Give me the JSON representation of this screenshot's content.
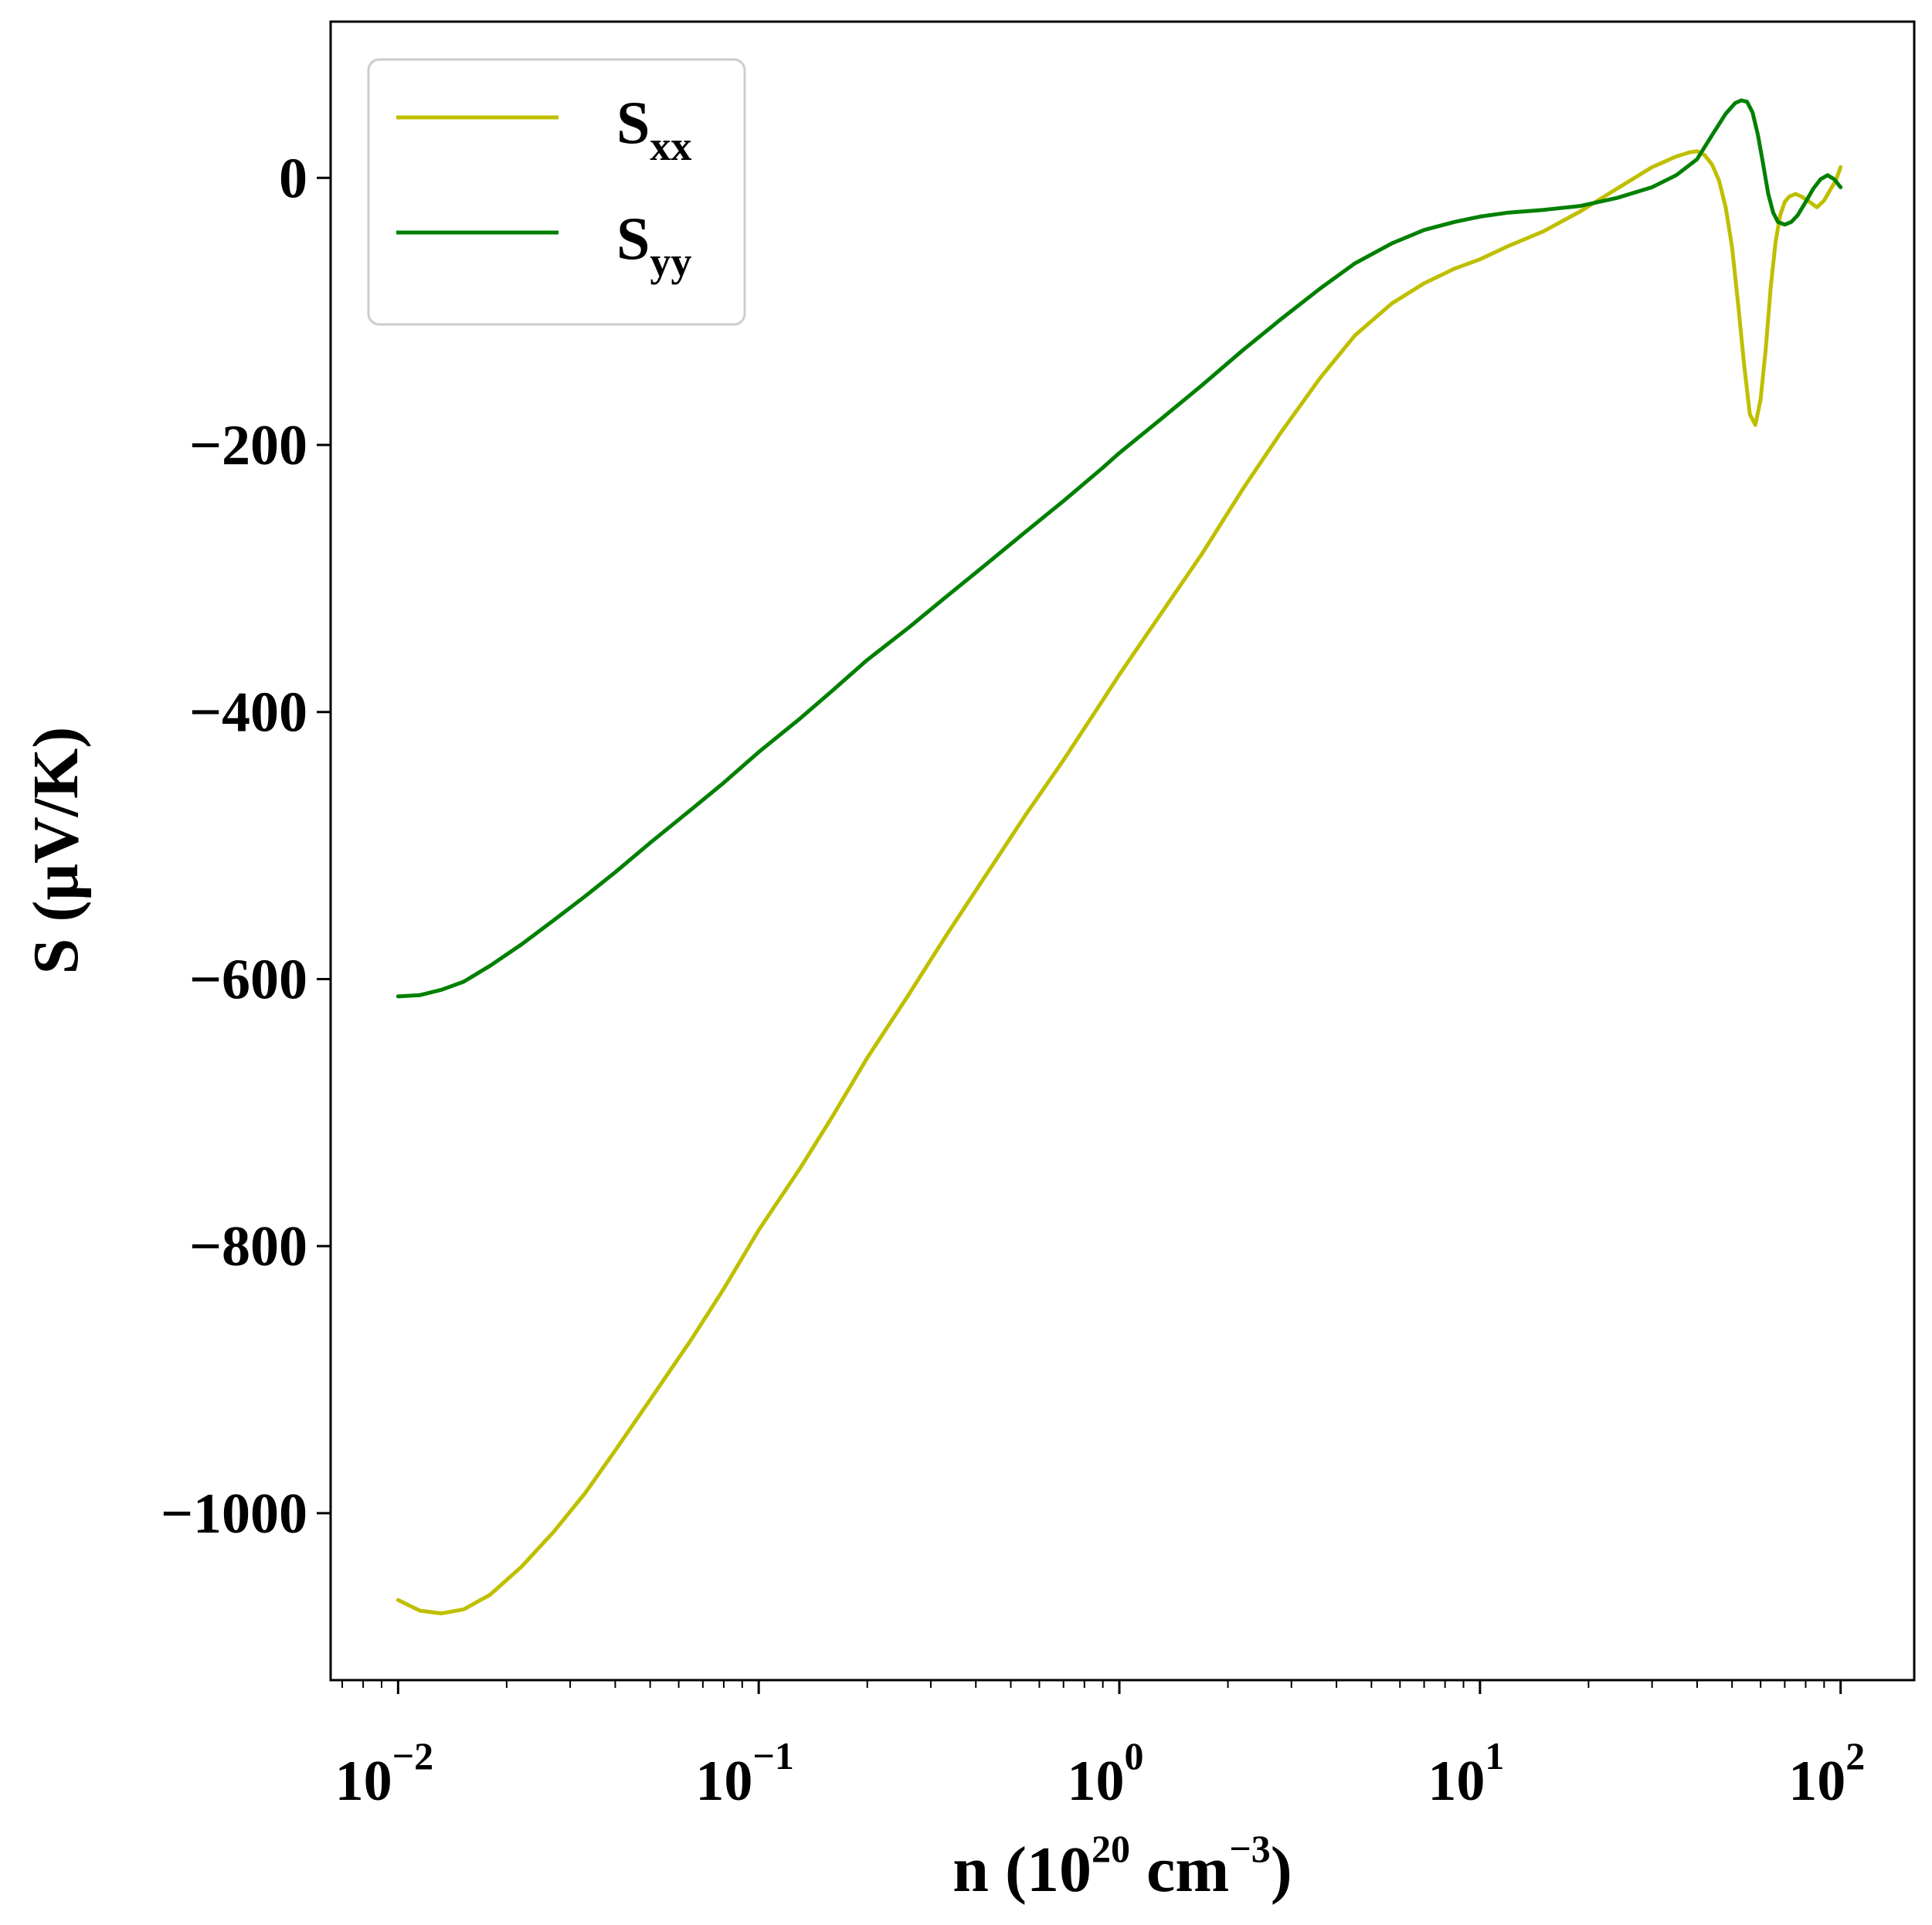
{
  "chart_data": {
    "type": "line",
    "xscale": "log",
    "xlabel": "n (10^20 cm^-3)",
    "xlabel_parts": {
      "base": "n (10",
      "exp1": "20",
      "mid": " cm",
      "exp2": "−3",
      "end": ")"
    },
    "ylabel": "S (μV/K)",
    "xlim": [
      0.0065,
      160
    ],
    "ylim": [
      -1125,
      117
    ],
    "x_ticks": [
      {
        "value": 0.01,
        "base": "10",
        "exp": "−2"
      },
      {
        "value": 0.1,
        "base": "10",
        "exp": "−1"
      },
      {
        "value": 1,
        "base": "10",
        "exp": "0"
      },
      {
        "value": 10,
        "base": "10",
        "exp": "1"
      },
      {
        "value": 100,
        "base": "10",
        "exp": "2"
      }
    ],
    "y_ticks": [
      {
        "value": 0,
        "label": "0"
      },
      {
        "value": -200,
        "label": "−200"
      },
      {
        "value": -400,
        "label": "−400"
      },
      {
        "value": -600,
        "label": "−600"
      },
      {
        "value": -800,
        "label": "−800"
      },
      {
        "value": -1000,
        "label": "−1000"
      }
    ],
    "legend": {
      "position": "upper-left"
    },
    "series": [
      {
        "name": "S_xx",
        "label_base": "S",
        "label_sub": "xx",
        "color": "#bfbf00",
        "x": [
          0.01,
          0.0115,
          0.0132,
          0.0152,
          0.018,
          0.022,
          0.027,
          0.033,
          0.04,
          0.05,
          0.065,
          0.08,
          0.1,
          0.13,
          0.16,
          0.2,
          0.26,
          0.33,
          0.42,
          0.55,
          0.7,
          0.9,
          1.0,
          1.3,
          1.7,
          2.2,
          2.8,
          3.6,
          4.5,
          5.7,
          7.0,
          8.5,
          10,
          12,
          15,
          19,
          24,
          30,
          35,
          38,
          40,
          42,
          44,
          46,
          48,
          50,
          52,
          54,
          56,
          58,
          60,
          62,
          64,
          66,
          68,
          70,
          72,
          75,
          78,
          82,
          86,
          90,
          94,
          97,
          100
        ],
        "y": [
          -1065,
          -1073,
          -1075,
          -1072,
          -1061,
          -1040,
          -1014,
          -985,
          -953,
          -915,
          -870,
          -832,
          -788,
          -742,
          -703,
          -659,
          -612,
          -568,
          -525,
          -477,
          -436,
          -391,
          -372,
          -327,
          -281,
          -233,
          -191,
          -150,
          -118,
          -94,
          -79,
          -68,
          -61,
          -51,
          -40,
          -25,
          -8,
          8,
          16,
          19,
          20,
          17,
          10,
          -2,
          -22,
          -52,
          -95,
          -140,
          -177,
          -185,
          -166,
          -128,
          -82,
          -48,
          -28,
          -18,
          -14,
          -12,
          -14,
          -18,
          -22,
          -17,
          -8,
          -2,
          8
        ]
      },
      {
        "name": "S_yy",
        "label_base": "S",
        "label_sub": "yy",
        "color": "#008000",
        "x": [
          0.01,
          0.0115,
          0.0132,
          0.0152,
          0.018,
          0.022,
          0.027,
          0.033,
          0.04,
          0.05,
          0.065,
          0.08,
          0.1,
          0.13,
          0.16,
          0.2,
          0.26,
          0.33,
          0.42,
          0.55,
          0.7,
          0.9,
          1.0,
          1.3,
          1.7,
          2.2,
          2.8,
          3.6,
          4.5,
          5.7,
          7.0,
          8.5,
          10,
          12,
          15,
          19,
          24,
          30,
          35,
          40,
          44,
          48,
          51,
          53,
          55,
          57,
          59,
          61,
          63,
          65,
          67,
          70,
          73,
          76,
          80,
          84,
          88,
          92,
          96,
          100
        ],
        "y": [
          -613,
          -612,
          -608,
          -602,
          -590,
          -574,
          -556,
          -538,
          -520,
          -498,
          -473,
          -453,
          -430,
          -405,
          -384,
          -361,
          -337,
          -314,
          -291,
          -265,
          -242,
          -217,
          -206,
          -181,
          -155,
          -129,
          -106,
          -83,
          -64,
          -49,
          -39,
          -33,
          -29,
          -26,
          -24,
          -21,
          -15,
          -7,
          2,
          14,
          32,
          48,
          56,
          58,
          57,
          49,
          32,
          10,
          -12,
          -26,
          -33,
          -35,
          -33,
          -28,
          -18,
          -8,
          -1,
          2,
          -1,
          -7
        ]
      }
    ]
  }
}
